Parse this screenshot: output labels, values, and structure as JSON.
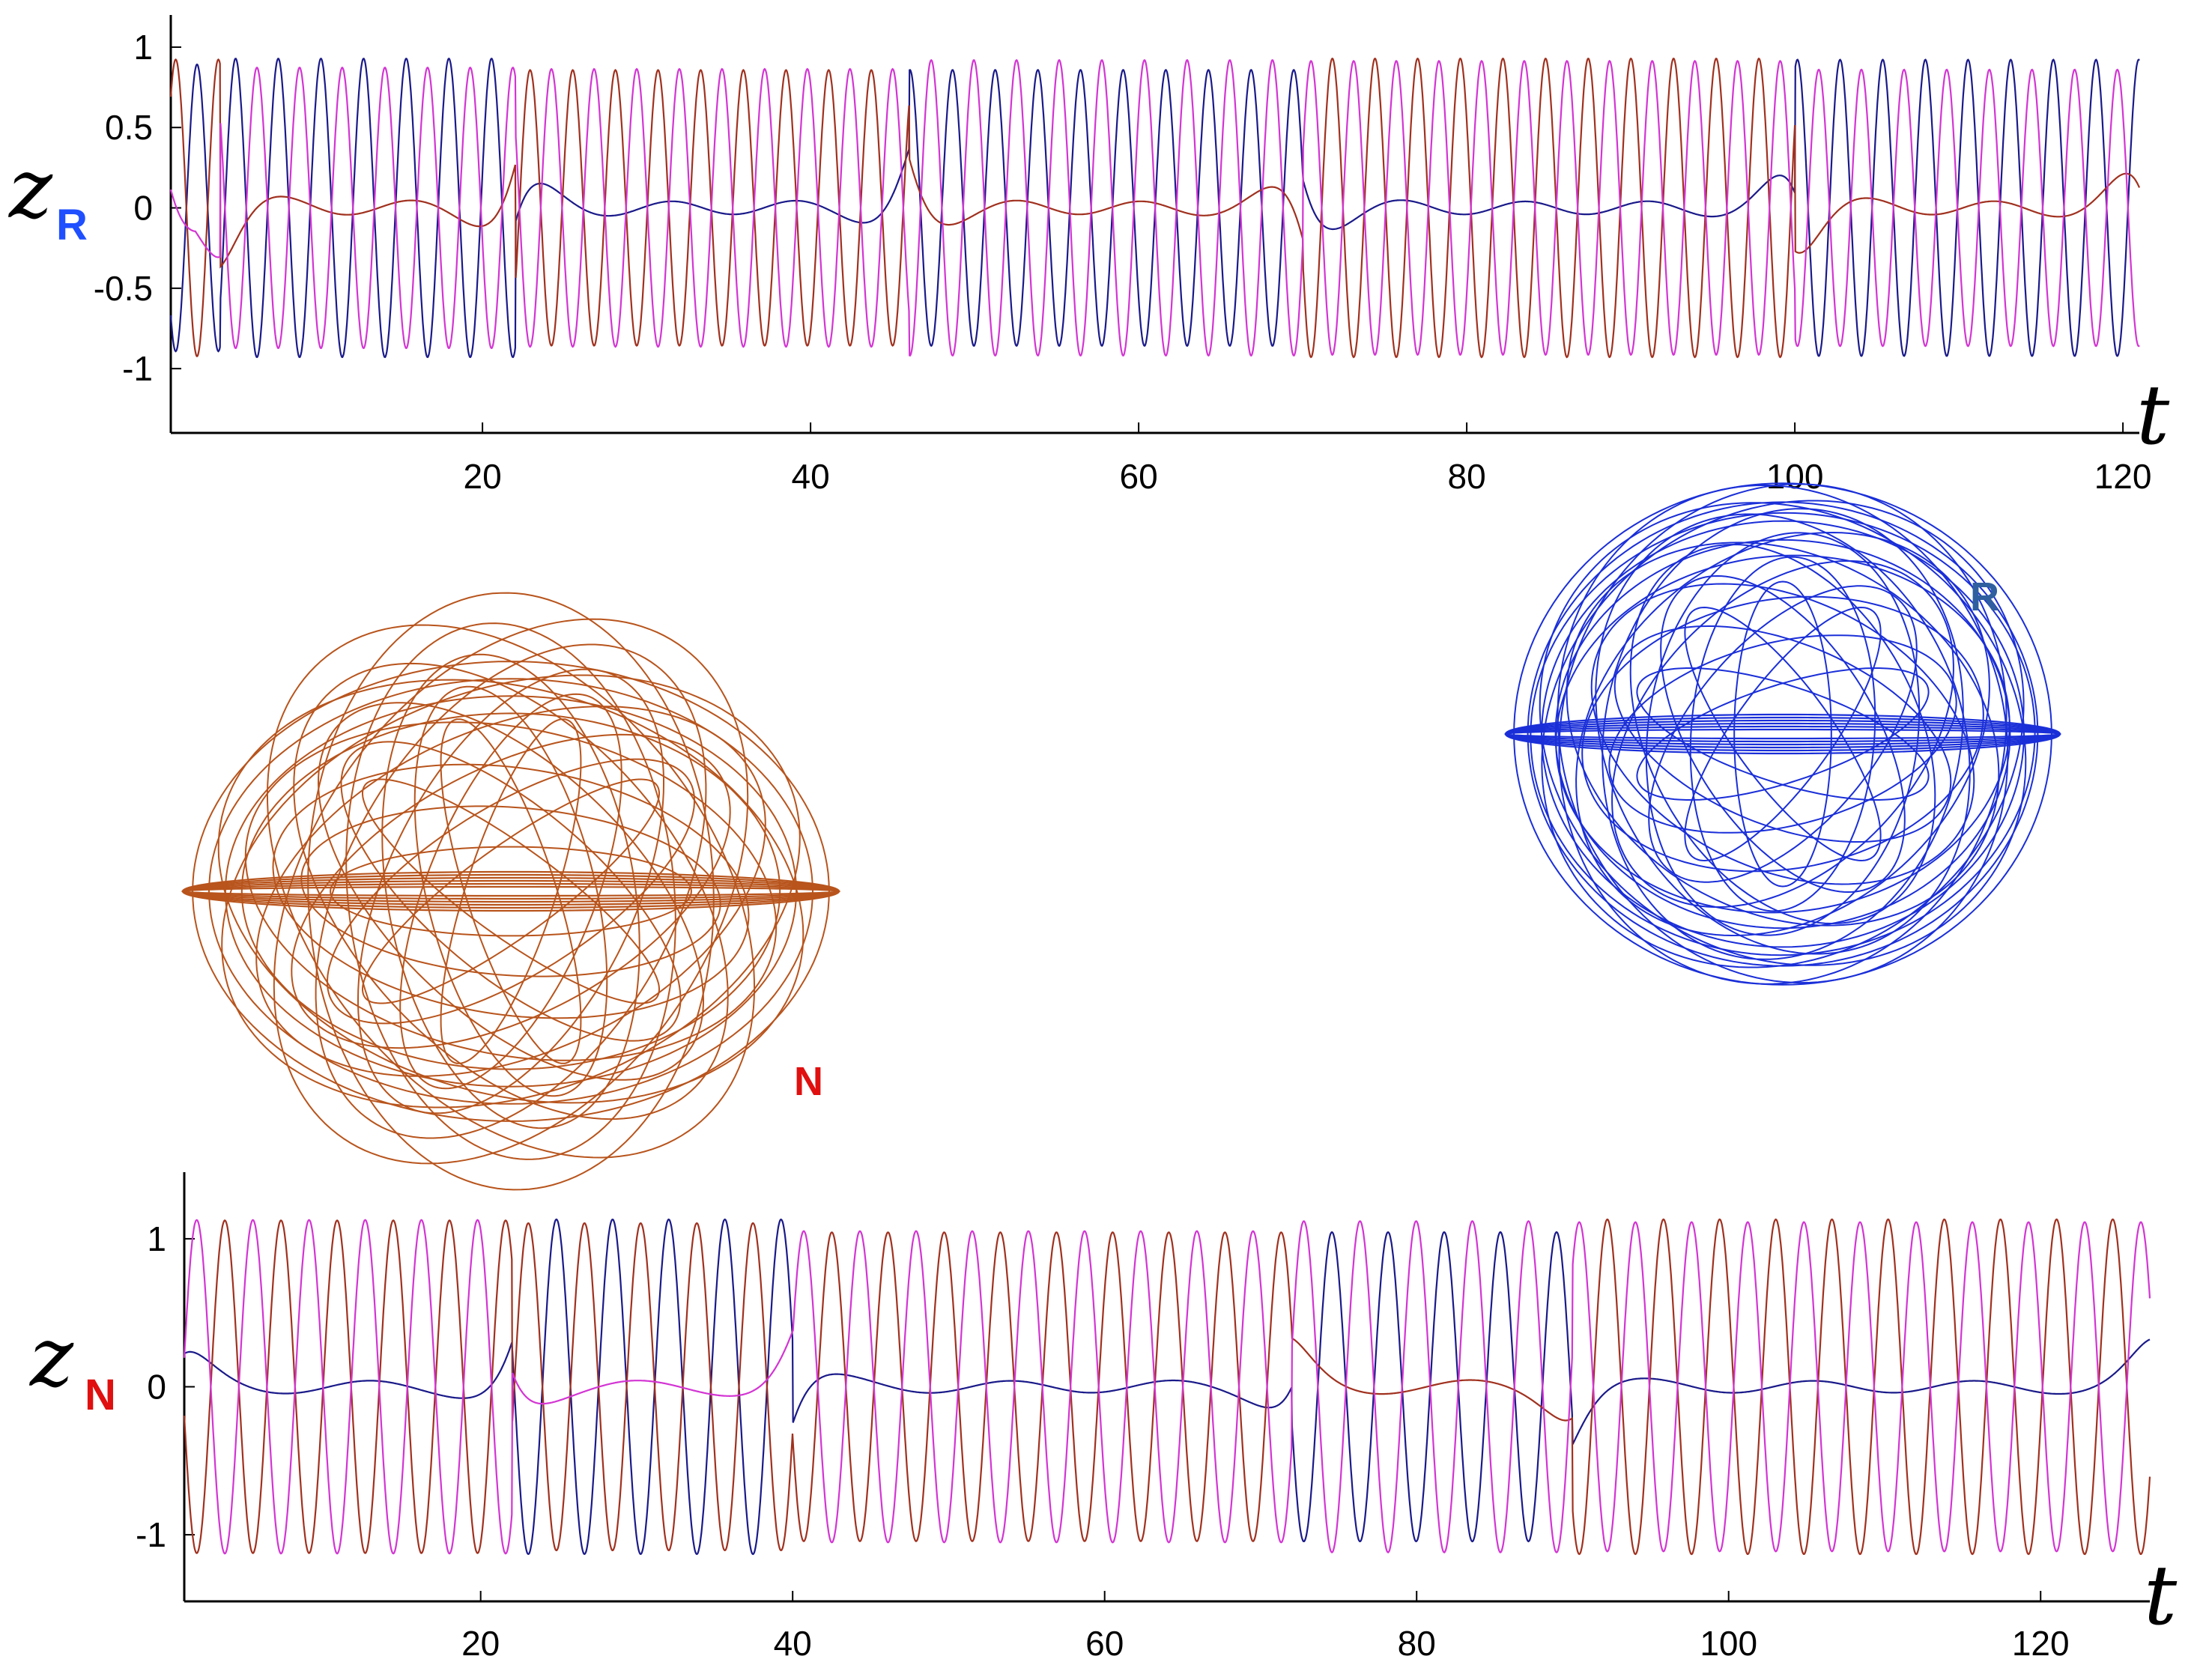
{
  "colors": {
    "blue_series": "#1a1a8a",
    "red_series": "#a0311f",
    "magenta_series": "#d335d3",
    "orbit_N": "#b8541c",
    "orbit_R": "#1a2fd8",
    "label_R": "#2f5f9f",
    "label_N": "#e01010",
    "sub_R": "#1f4fff"
  },
  "chart_data": [
    {
      "id": "top",
      "type": "line",
      "title": "",
      "ylabel": "z",
      "ylabel_sub": "R",
      "xlabel": "t",
      "xlim": [
        1,
        121
      ],
      "ylim": [
        -1.4,
        1.2
      ],
      "xticks": [
        20,
        40,
        60,
        80,
        100,
        120
      ],
      "yticks": [
        1,
        0.5,
        0,
        -0.5,
        -1
      ],
      "ytick_labels": [
        "1",
        "0.5",
        "0",
        "-0.5",
        "-1"
      ],
      "grid": false,
      "legend": "none",
      "series_description": "three oscillating components (blue, red, magenta) of period ~2.6 that alternately take large amplitude (~1) while one stays near 0",
      "period": 2.6,
      "segments": [
        {
          "t0": 1,
          "t1": 4,
          "quiet": "magenta"
        },
        {
          "t0": 4,
          "t1": 22,
          "quiet": "red"
        },
        {
          "t0": 22,
          "t1": 46,
          "quiet": "blue"
        },
        {
          "t0": 46,
          "t1": 70,
          "quiet": "red"
        },
        {
          "t0": 70,
          "t1": 100,
          "quiet": "blue"
        },
        {
          "t0": 100,
          "t1": 121,
          "quiet": "red"
        }
      ]
    },
    {
      "id": "bottom",
      "type": "line",
      "title": "",
      "ylabel": "z",
      "ylabel_sub": "N",
      "xlabel": "t",
      "xlim": [
        1,
        127
      ],
      "ylim": [
        -1.45,
        1.45
      ],
      "xticks": [
        20,
        40,
        60,
        80,
        100,
        120
      ],
      "yticks": [
        1,
        0,
        -1
      ],
      "ytick_labels": [
        "1",
        "0",
        "-1"
      ],
      "grid": false,
      "legend": "none",
      "series_description": "three oscillating components (blue, red, magenta) of period ~3.6, amplitude ~1.15, alternating which one stays near 0",
      "period": 3.6,
      "segments": [
        {
          "t0": 1,
          "t1": 22,
          "quiet": "blue"
        },
        {
          "t0": 22,
          "t1": 40,
          "quiet": "magenta"
        },
        {
          "t0": 40,
          "t1": 72,
          "quiet": "blue"
        },
        {
          "t0": 72,
          "t1": 90,
          "quiet": "red"
        },
        {
          "t0": 90,
          "t1": 127,
          "quiet": "blue"
        }
      ]
    }
  ],
  "orbits": [
    {
      "id": "N",
      "label": "N",
      "color": "orbit_N",
      "petals": 5,
      "description": "brown rosette orbit with horizontal band"
    },
    {
      "id": "R",
      "label": "R",
      "color": "orbit_R",
      "petals": 5,
      "description": "blue tilted rosette orbit"
    }
  ]
}
